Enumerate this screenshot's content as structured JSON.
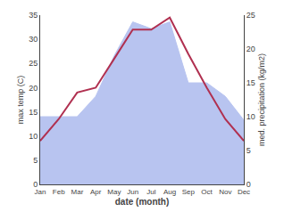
{
  "chart_data": {
    "type": "line",
    "categories": [
      "Jan",
      "Feb",
      "Mar",
      "Apr",
      "May",
      "Jun",
      "Jul",
      "Aug",
      "Sep",
      "Oct",
      "Nov",
      "Dec"
    ],
    "series": [
      {
        "type": "area",
        "color": "#b8c4f0",
        "axis": "y2",
        "values": [
          10,
          10,
          10,
          13,
          19,
          24,
          23,
          24,
          15,
          15,
          13,
          9.5
        ]
      },
      {
        "type": "line",
        "color": "#b03050",
        "values": [
          9,
          13.5,
          19,
          20,
          26,
          32,
          32,
          34.5,
          27,
          20,
          13.5,
          9
        ]
      }
    ],
    "xlabel": "date (month)",
    "ylabel": "max temp (C)",
    "y2label": "med. precipitation (kg/m2)",
    "ylim": [
      0,
      35
    ],
    "yticks": [
      0,
      5,
      10,
      15,
      20,
      25,
      30,
      35
    ],
    "y2lim": [
      0,
      25
    ],
    "y2ticks": [
      0,
      5,
      10,
      15,
      20,
      25
    ],
    "grid": false
  }
}
